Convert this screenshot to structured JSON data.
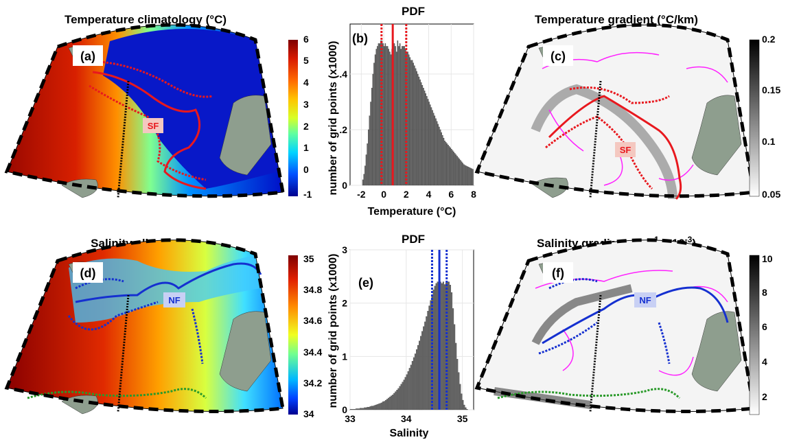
{
  "panels": {
    "a": {
      "title": "Temperature   climatology (°C)",
      "label": "(a)",
      "front_label": "SF"
    },
    "c": {
      "title": "Temperature gradient (°C/km)",
      "label": "(c)",
      "front_label": "SF"
    },
    "d": {
      "title": "Salinity climatology",
      "label": "(d)",
      "front_label": "NF"
    },
    "f": {
      "title": "Salinity gradient (km",
      "title_sup": "-1",
      "title_tail": " x 10",
      "title_sup2": "-3",
      "title_end": ")",
      "label": "(f)",
      "front_label": "NF"
    }
  },
  "colorbars": {
    "temperature": {
      "ticks": [
        "6",
        "5",
        "4",
        "3",
        "2",
        "1",
        "0",
        "-1"
      ]
    },
    "temp_gradient": {
      "ticks": [
        "0.2",
        "0.15",
        "0.1",
        "0.05"
      ]
    },
    "salinity": {
      "ticks": [
        "35",
        "34.8",
        "34.6",
        "34.4",
        "34.2",
        "34"
      ]
    },
    "sal_gradient": {
      "ticks": [
        "10",
        "8",
        "6",
        "4",
        "2"
      ]
    }
  },
  "colors": {
    "sf_front": "#e8181e",
    "nf_front": "#1530d0",
    "green_front": "#2a9a2a",
    "contour": "#ff20ff",
    "land": "#8e9e8e"
  },
  "chart_data": [
    {
      "type": "bar",
      "id": "b",
      "title": "PDF",
      "panel_label": "(b)",
      "xlabel": "Temperature (°C)",
      "ylabel": "number of grid points (x1000)",
      "xlim": [
        -3,
        8
      ],
      "ylim": [
        0,
        0.58
      ],
      "xticks": [
        "-2",
        "0",
        "2",
        "4",
        "6",
        "8"
      ],
      "yticks": [
        "0",
        ".2",
        ".4"
      ],
      "bin_start": -1.9,
      "bin_width": 0.1,
      "values": [
        0.02,
        0.04,
        0.07,
        0.11,
        0.15,
        0.2,
        0.25,
        0.3,
        0.35,
        0.4,
        0.44,
        0.47,
        0.49,
        0.5,
        0.51,
        0.51,
        0.52,
        0.52,
        0.51,
        0.5,
        0.51,
        0.5,
        0.5,
        0.49,
        0.48,
        0.47,
        0.49,
        0.52,
        0.51,
        0.5,
        0.48,
        0.52,
        0.5,
        0.51,
        0.49,
        0.5,
        0.5,
        0.5,
        0.49,
        0.48,
        0.48,
        0.47,
        0.46,
        0.45,
        0.45,
        0.44,
        0.43,
        0.42,
        0.41,
        0.4,
        0.39,
        0.38,
        0.37,
        0.36,
        0.35,
        0.34,
        0.33,
        0.32,
        0.31,
        0.3,
        0.29,
        0.28,
        0.27,
        0.26,
        0.25,
        0.24,
        0.23,
        0.22,
        0.21,
        0.2,
        0.19,
        0.18,
        0.17,
        0.16,
        0.155,
        0.15,
        0.145,
        0.14,
        0.135,
        0.13,
        0.125,
        0.12,
        0.115,
        0.11,
        0.105,
        0.1,
        0.095,
        0.09,
        0.085,
        0.08,
        0.075,
        0.072,
        0.07,
        0.068,
        0.066,
        0.064,
        0.062,
        0.06,
        0.058
      ],
      "vlines": {
        "solid": [
          0.8
        ],
        "dashed": [
          -0.2,
          2.0
        ]
      }
    },
    {
      "type": "bar",
      "id": "e",
      "title": "PDF",
      "panel_label": "(e)",
      "xlabel": "Salinity",
      "ylabel": "number of grid points (x1000)",
      "xlim": [
        33,
        35.2
      ],
      "ylim": [
        0,
        3
      ],
      "xticks": [
        "33",
        "34",
        "35"
      ],
      "yticks": [
        "0",
        "1",
        "2",
        "3"
      ],
      "bin_start": 33.0,
      "bin_width": 0.025,
      "values": [
        0.01,
        0.01,
        0.01,
        0.01,
        0.02,
        0.02,
        0.02,
        0.03,
        0.03,
        0.03,
        0.04,
        0.04,
        0.05,
        0.05,
        0.06,
        0.07,
        0.07,
        0.08,
        0.09,
        0.1,
        0.11,
        0.12,
        0.13,
        0.15,
        0.16,
        0.18,
        0.2,
        0.22,
        0.24,
        0.26,
        0.28,
        0.31,
        0.34,
        0.37,
        0.4,
        0.44,
        0.48,
        0.52,
        0.56,
        0.61,
        0.66,
        0.72,
        0.78,
        0.84,
        0.91,
        0.98,
        1.05,
        1.13,
        1.21,
        1.29,
        1.38,
        1.47,
        1.56,
        1.65,
        1.75,
        1.85,
        1.95,
        2.05,
        2.15,
        2.25,
        2.32,
        2.37,
        2.4,
        2.38,
        2.4,
        2.37,
        2.4,
        2.35,
        2.38,
        2.4,
        2.4,
        2.34,
        2.2,
        1.9,
        1.6,
        1.25,
        0.95,
        0.7,
        0.48,
        0.3,
        0.18,
        0.09,
        0.04,
        0.01
      ],
      "vlines": {
        "solid": [
          34.59
        ],
        "dashed": [
          34.46,
          34.72
        ]
      }
    }
  ]
}
